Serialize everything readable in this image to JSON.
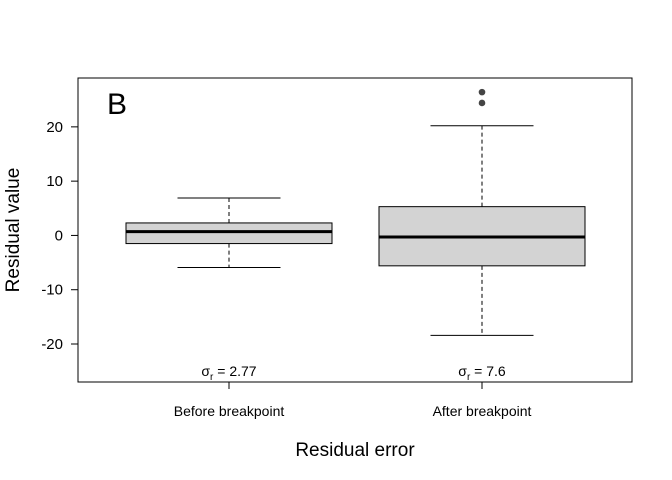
{
  "chart_data": {
    "type": "box",
    "panel_label": "B",
    "xlabel": "Residual error",
    "ylabel": "Residual value",
    "ylim": [
      -27,
      29
    ],
    "yticks": [
      -20,
      -10,
      0,
      10,
      20
    ],
    "ytick_labels": [
      "-20",
      "-10",
      "0",
      "10",
      "20"
    ],
    "grid": false,
    "box_fill": "#d3d3d3",
    "outlier_color": "#444444",
    "categories": [
      "Before breakpoint",
      "After breakpoint"
    ],
    "boxes": [
      {
        "category": "Before breakpoint",
        "whisker_low": -5.9,
        "q1": -1.5,
        "median": 0.7,
        "q3": 2.3,
        "whisker_high": 6.9,
        "outliers": [],
        "sigma_symbol": "σ",
        "sigma_sub": "r",
        "sigma_value": "= 2.77"
      },
      {
        "category": "After breakpoint",
        "whisker_low": -18.4,
        "q1": -5.6,
        "median": -0.3,
        "q3": 5.3,
        "whisker_high": 20.2,
        "outliers": [
          24.4,
          26.4
        ],
        "sigma_symbol": "σ",
        "sigma_sub": "r",
        "sigma_value": "= 7.6"
      }
    ]
  }
}
